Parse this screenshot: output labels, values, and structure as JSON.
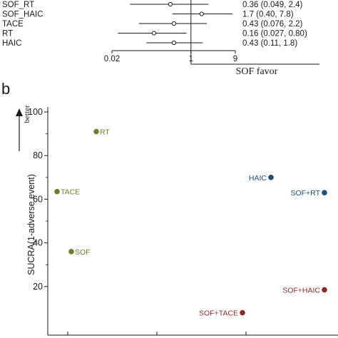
{
  "panel_b_label": "b",
  "better_label": "better",
  "sof_favor_label": "SOF favor",
  "chart_data": [
    {
      "type": "forest",
      "panel": "a",
      "x_scale": "log",
      "ticks": [
        0.02,
        1,
        9
      ],
      "tick_labels": [
        "0.02",
        "1",
        "9"
      ],
      "xlabel": "SOF favor",
      "rows": [
        {
          "label": "SOF_RT",
          "estimate": 0.36,
          "lower": 0.049,
          "upper": 2.4,
          "text": "0.36 (0.049, 2.4)"
        },
        {
          "label": "SOF_HAIC",
          "estimate": 1.7,
          "lower": 0.4,
          "upper": 7.8,
          "text": "1.7 (0.40, 7.8)"
        },
        {
          "label": "TACE",
          "estimate": 0.43,
          "lower": 0.076,
          "upper": 2.2,
          "text": "0.43 (0.076, 2.2)"
        },
        {
          "label": "RT",
          "estimate": 0.16,
          "lower": 0.027,
          "upper": 0.8,
          "text": "0.16 (0.027, 0.80)"
        },
        {
          "label": "HAIC",
          "estimate": 0.43,
          "lower": 0.11,
          "upper": 1.8,
          "text": "0.43 (0.11, 1.8)"
        }
      ]
    },
    {
      "type": "scatter",
      "panel": "b",
      "ylabel": "SUCRA(1-adverse event)",
      "ylim": [
        0,
        100
      ],
      "yticks": [
        20,
        40,
        60,
        80,
        100
      ],
      "ytick_labels": [
        "20",
        "40",
        "60",
        "80",
        "100"
      ],
      "grid": false,
      "points": [
        {
          "label": "RT",
          "x": 1.2,
          "y": 91,
          "color": "#6b7f2a"
        },
        {
          "label": "TACE",
          "x": 0.1,
          "y": 63.5,
          "color": "#6b7f2a"
        },
        {
          "label": "SOF",
          "x": 0.5,
          "y": 36,
          "color": "#6b7f2a"
        },
        {
          "label": "HAIC",
          "x": 6.1,
          "y": 70,
          "color": "#1f4e79"
        },
        {
          "label": "SOF+RT",
          "x": 7.6,
          "y": 63,
          "color": "#1f4e79"
        },
        {
          "label": "SOF+HAIC",
          "x": 7.6,
          "y": 18.5,
          "color": "#8b2a2a"
        },
        {
          "label": "SOF+TACE",
          "x": 5.3,
          "y": 8,
          "color": "#8b2a2a"
        }
      ]
    }
  ]
}
